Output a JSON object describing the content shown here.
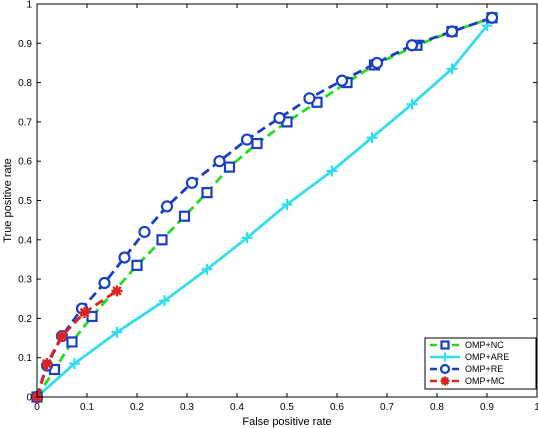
{
  "chart_data": {
    "type": "line",
    "xlabel": "False positive rate",
    "ylabel": "True positive rate",
    "xlim": [
      0,
      1
    ],
    "ylim": [
      0,
      1
    ],
    "x_ticks": [
      "0",
      "0.1",
      "0.2",
      "0.3",
      "0.4",
      "0.5",
      "0.6",
      "0.7",
      "0.8",
      "0.9",
      "1"
    ],
    "y_ticks": [
      "0",
      "0.1",
      "0.2",
      "0.3",
      "0.4",
      "0.5",
      "0.6",
      "0.7",
      "0.8",
      "0.9",
      "1"
    ],
    "grid": false,
    "legend_position": "bottom-right",
    "series": [
      {
        "name": "OMP+NC",
        "color": "#22dd22",
        "marker_color": "#1a3fc0",
        "marker": "square",
        "line_style": "dashed",
        "x": [
          0.0,
          0.035,
          0.07,
          0.11,
          0.2,
          0.25,
          0.295,
          0.34,
          0.385,
          0.44,
          0.5,
          0.56,
          0.62,
          0.675,
          0.76,
          0.83,
          0.91
        ],
        "y": [
          0.0,
          0.07,
          0.14,
          0.205,
          0.335,
          0.4,
          0.46,
          0.52,
          0.585,
          0.645,
          0.7,
          0.75,
          0.8,
          0.845,
          0.895,
          0.93,
          0.965
        ]
      },
      {
        "name": "OMP+ARE",
        "color": "#33ddee",
        "marker_color": "#33ddee",
        "marker": "plus",
        "line_style": "solid",
        "x": [
          0.0,
          0.075,
          0.16,
          0.255,
          0.34,
          0.42,
          0.5,
          0.59,
          0.67,
          0.75,
          0.83,
          0.9
        ],
        "y": [
          0.0,
          0.085,
          0.165,
          0.245,
          0.325,
          0.405,
          0.49,
          0.575,
          0.66,
          0.745,
          0.835,
          0.945
        ]
      },
      {
        "name": "OMP+RE",
        "color": "#1a3fc0",
        "marker_color": "#1a3fc0",
        "marker": "circle",
        "line_style": "dashed",
        "x": [
          0.0,
          0.02,
          0.05,
          0.09,
          0.135,
          0.175,
          0.215,
          0.26,
          0.31,
          0.365,
          0.42,
          0.485,
          0.545,
          0.61,
          0.68,
          0.75,
          0.83,
          0.91
        ],
        "y": [
          0.0,
          0.08,
          0.155,
          0.225,
          0.29,
          0.355,
          0.42,
          0.485,
          0.545,
          0.6,
          0.655,
          0.71,
          0.76,
          0.805,
          0.85,
          0.895,
          0.93,
          0.965
        ]
      },
      {
        "name": "OMP+MC",
        "color": "#dd2222",
        "marker_color": "#dd2222",
        "marker": "star",
        "line_style": "dashed",
        "x": [
          0.0,
          0.02,
          0.05,
          0.095,
          0.16
        ],
        "y": [
          0.0,
          0.085,
          0.155,
          0.215,
          0.27
        ]
      }
    ]
  }
}
